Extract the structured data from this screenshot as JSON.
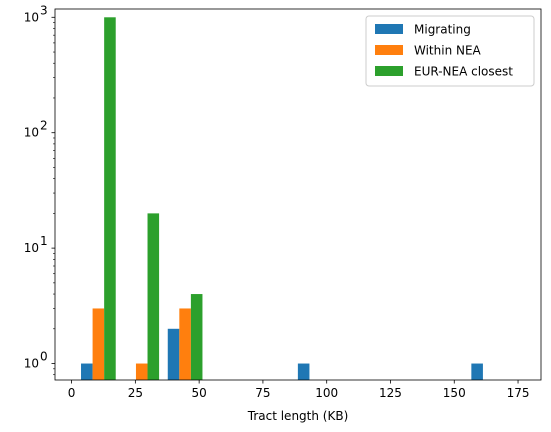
{
  "chart_data": {
    "type": "bar",
    "title": "",
    "xlabel": "Tract length (KB)",
    "ylabel": "",
    "yscale": "log",
    "xlim": [
      -6.5,
      184
    ],
    "ylim": [
      0.72,
      1180
    ],
    "grid": false,
    "legend_position": "top-right",
    "x_ticks": [
      0,
      25,
      50,
      75,
      100,
      125,
      150,
      175
    ],
    "y_ticks": [
      1,
      10,
      100,
      1000
    ],
    "y_tick_labels": [
      "10",
      "10",
      "10",
      "10"
    ],
    "y_tick_exponents": [
      "0",
      "1",
      "2",
      "3"
    ],
    "bin_edges": [
      2,
      19,
      36,
      53,
      70,
      87,
      104,
      121,
      138,
      155,
      172
    ],
    "series": [
      {
        "name": "Migrating",
        "color": "#1f77b4",
        "counts": [
          1,
          0,
          2,
          0,
          0,
          1,
          0,
          0,
          0,
          1
        ]
      },
      {
        "name": "Within NEA",
        "color": "#ff7f0e",
        "counts": [
          3,
          1,
          3,
          0,
          0,
          0,
          0,
          0,
          0,
          0
        ]
      },
      {
        "name": "EUR-NEA closest",
        "color": "#2ca02c",
        "counts": [
          1000,
          20,
          4,
          0,
          0,
          0,
          0,
          0,
          0,
          0
        ]
      }
    ]
  }
}
